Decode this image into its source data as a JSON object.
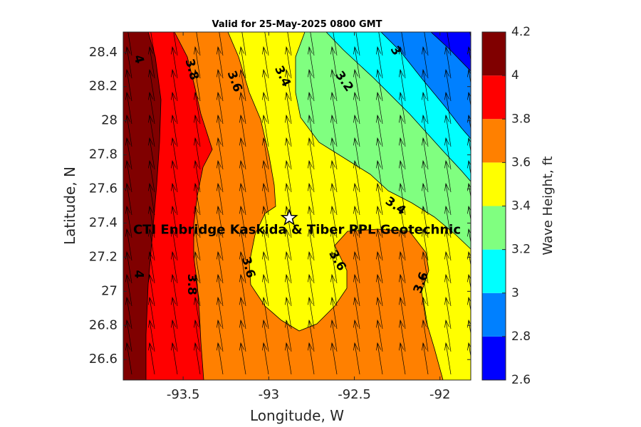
{
  "chart_data": {
    "type": "filled-contour",
    "title": "Valid for 25-May-2025 0800 GMT",
    "xlabel": "Longitude, W",
    "ylabel": "Latitude, N",
    "xlim": [
      -93.85,
      -91.82
    ],
    "ylim": [
      26.48,
      28.52
    ],
    "xticks": [
      -93.5,
      -93,
      -92.5,
      -92
    ],
    "xtick_labels": [
      "-93.5",
      "-93",
      "-92.5",
      "-92"
    ],
    "yticks": [
      26.6,
      26.8,
      27,
      27.2,
      27.4,
      27.6,
      27.8,
      28,
      28.2,
      28.4
    ],
    "ytick_labels": [
      "26.6",
      "26.8",
      "27",
      "27.2",
      "27.4",
      "27.6",
      "27.8",
      "28",
      "28.2",
      "28.4"
    ],
    "colorbar": {
      "label": "Wave Height, ft",
      "levels": [
        2.6,
        2.8,
        3.0,
        3.2,
        3.4,
        3.6,
        3.8,
        4.0,
        4.2
      ],
      "tick_labels": [
        "2.6",
        "2.8",
        "3",
        "3.2",
        "3.4",
        "3.6",
        "3.8",
        "4",
        "4.2"
      ],
      "colors": [
        "#0000ff",
        "#0080ff",
        "#00ffff",
        "#80ff80",
        "#ffff00",
        "#ff8000",
        "#ff0000",
        "#800000"
      ]
    },
    "contour_labels": [
      {
        "text": "4",
        "lon": -93.76,
        "lat": 28.36
      },
      {
        "text": "3.8",
        "lon": -93.45,
        "lat": 28.3
      },
      {
        "text": "3.6",
        "lon": -93.2,
        "lat": 28.23
      },
      {
        "text": "3.4",
        "lon": -92.92,
        "lat": 28.26
      },
      {
        "text": "3.2",
        "lon": -92.56,
        "lat": 28.23
      },
      {
        "text": "3",
        "lon": -92.26,
        "lat": 28.41
      },
      {
        "text": "3.4",
        "lon": -92.26,
        "lat": 27.5
      },
      {
        "text": "3.6",
        "lon": -92.6,
        "lat": 27.18
      },
      {
        "text": "3.6",
        "lon": -93.12,
        "lat": 27.14
      },
      {
        "text": "3.8",
        "lon": -93.45,
        "lat": 27.04
      },
      {
        "text": "4",
        "lon": -93.76,
        "lat": 27.1
      },
      {
        "text": "3.6",
        "lon": -92.11,
        "lat": 27.05
      }
    ],
    "wave_direction": "toward north-northwest",
    "site": {
      "name": "CTI Enbridge  Kaskida & Tiber PPL Geotechnic",
      "lon": -92.88,
      "lat": 27.43,
      "marker": "star"
    }
  }
}
